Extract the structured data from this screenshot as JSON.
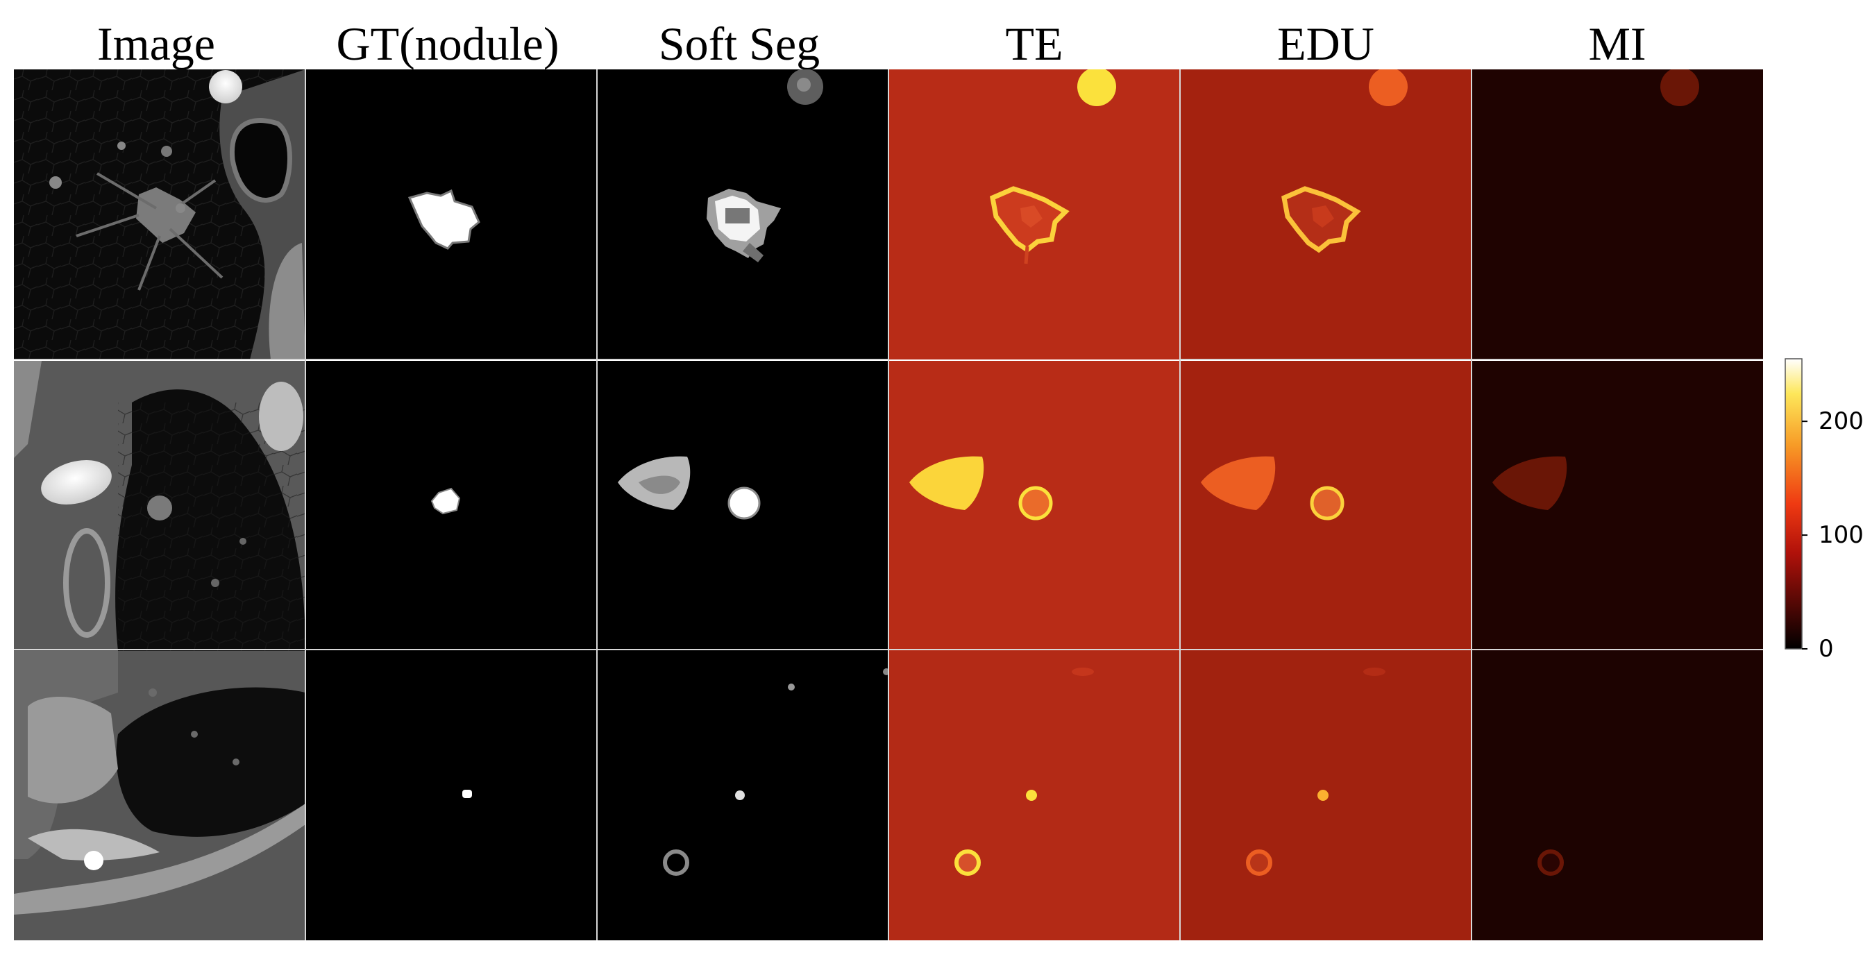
{
  "figure": {
    "columns": [
      {
        "key": "image",
        "title": "Image"
      },
      {
        "key": "gt",
        "title": "GT(nodule)"
      },
      {
        "key": "softseg",
        "title": "Soft  Seg"
      },
      {
        "key": "te",
        "title": "TE"
      },
      {
        "key": "edu",
        "title": "EDU"
      },
      {
        "key": "mi",
        "title": "MI"
      }
    ],
    "rows": 3,
    "colorbar": {
      "colormap": "hot",
      "range": [
        0,
        255
      ],
      "ticks": [
        "0",
        "100",
        "200"
      ],
      "tick_values": [
        0,
        100,
        200
      ]
    },
    "colors": {
      "te_background": "#b82c17",
      "edu_background": "#a4220f",
      "mi_background": "#1f0301",
      "highlight_yellow": "#fbe13c",
      "highlight_orange": "#ec5e22"
    }
  }
}
